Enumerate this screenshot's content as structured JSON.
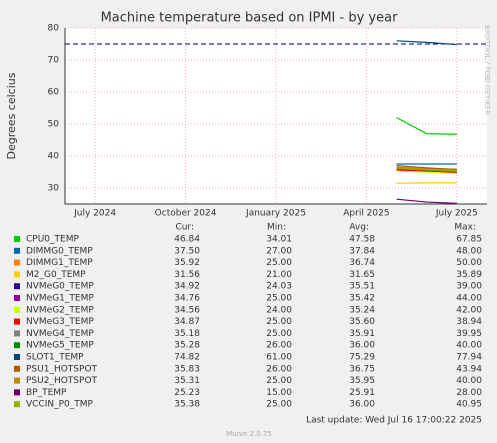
{
  "chart_data": {
    "type": "line",
    "title": "Machine temperature based on IPMI - by year",
    "y_label": "Degrees celcius",
    "side_label": "RRDTOOL / TOBI OETIKER",
    "xlim": [
      "2024-06",
      "2025-08"
    ],
    "xticks": [
      {
        "value": "2024-07",
        "label": "July 2024"
      },
      {
        "value": "2024-10",
        "label": "October 2024"
      },
      {
        "value": "2025-01",
        "label": "January 2025"
      },
      {
        "value": "2025-04",
        "label": "April 2025"
      },
      {
        "value": "2025-07",
        "label": "July 2025"
      }
    ],
    "ylim": [
      25,
      80
    ],
    "yticks": [
      30,
      40,
      50,
      60,
      70,
      80
    ],
    "grid": true,
    "threshold": {
      "value": 75,
      "color": "#000080"
    },
    "x": [
      "2025-05",
      "2025-06",
      "2025-07"
    ],
    "legend_columns": [
      "Cur:",
      "Min:",
      "Avg:",
      "Max:"
    ],
    "series": [
      {
        "name": "CPU0_TEMP",
        "color": "#00cc00",
        "values": [
          52,
          47,
          46.8
        ],
        "stats": [
          "46.84",
          "34.01",
          "47.58",
          "67.85"
        ]
      },
      {
        "name": "DIMMG0_TEMP",
        "color": "#0066b3",
        "values": [
          37.5,
          37.5,
          37.5
        ],
        "stats": [
          "37.50",
          "27.00",
          "37.84",
          "48.00"
        ]
      },
      {
        "name": "DIMMG1_TEMP",
        "color": "#ff8000",
        "values": [
          36.5,
          36,
          35.9
        ],
        "stats": [
          "35.92",
          "25.00",
          "36.74",
          "50.00"
        ]
      },
      {
        "name": "M2_G0_TEMP",
        "color": "#ffcc00",
        "values": [
          31.5,
          31.6,
          31.6
        ],
        "stats": [
          "31.56",
          "21.00",
          "31.65",
          "35.89"
        ]
      },
      {
        "name": "NVMeG0_TEMP",
        "color": "#330099",
        "values": [
          35.5,
          35.2,
          34.9
        ],
        "stats": [
          "34.92",
          "24.03",
          "35.51",
          "39.00"
        ]
      },
      {
        "name": "NVMeG1_TEMP",
        "color": "#990099",
        "values": [
          35.5,
          35.1,
          34.8
        ],
        "stats": [
          "34.76",
          "25.00",
          "35.42",
          "44.00"
        ]
      },
      {
        "name": "NVMeG2_TEMP",
        "color": "#ccff00",
        "values": [
          35.3,
          35,
          34.6
        ],
        "stats": [
          "34.56",
          "24.00",
          "35.24",
          "42.00"
        ]
      },
      {
        "name": "NVMeG3_TEMP",
        "color": "#ff0000",
        "values": [
          35.7,
          35.3,
          34.9
        ],
        "stats": [
          "34.87",
          "25.00",
          "35.60",
          "38.94"
        ]
      },
      {
        "name": "NVMeG4_TEMP",
        "color": "#808080",
        "values": [
          36,
          35.6,
          35.2
        ],
        "stats": [
          "35.18",
          "25.00",
          "35.91",
          "39.95"
        ]
      },
      {
        "name": "NVMeG5_TEMP",
        "color": "#008f00",
        "values": [
          36.1,
          35.7,
          35.3
        ],
        "stats": [
          "35.28",
          "26.00",
          "36.00",
          "40.00"
        ]
      },
      {
        "name": "SLOT1_TEMP",
        "color": "#00487d",
        "values": [
          76,
          75.5,
          74.8
        ],
        "stats": [
          "74.82",
          "61.00",
          "75.29",
          "77.94"
        ]
      },
      {
        "name": "PSU1_HOTSPOT",
        "color": "#b35a00",
        "values": [
          37,
          36.3,
          35.8
        ],
        "stats": [
          "35.83",
          "26.00",
          "36.75",
          "43.94"
        ]
      },
      {
        "name": "PSU2_HOTSPOT",
        "color": "#b38f00",
        "values": [
          36.5,
          35.9,
          35.3
        ],
        "stats": [
          "35.31",
          "25.00",
          "35.95",
          "40.00"
        ]
      },
      {
        "name": "BP_TEMP",
        "color": "#6b006b",
        "values": [
          26.5,
          25.6,
          25.2
        ],
        "stats": [
          "25.23",
          "15.00",
          "25.91",
          "28.00"
        ]
      },
      {
        "name": "VCCIN_P0_TMP",
        "color": "#8fb300",
        "values": [
          36.2,
          35.7,
          35.4
        ],
        "stats": [
          "35.38",
          "25.00",
          "36.00",
          "40.95"
        ]
      }
    ],
    "last_update": "Last update: Wed Jul 16 17:00:22 2025",
    "footer": "Munin 2.0.75"
  }
}
